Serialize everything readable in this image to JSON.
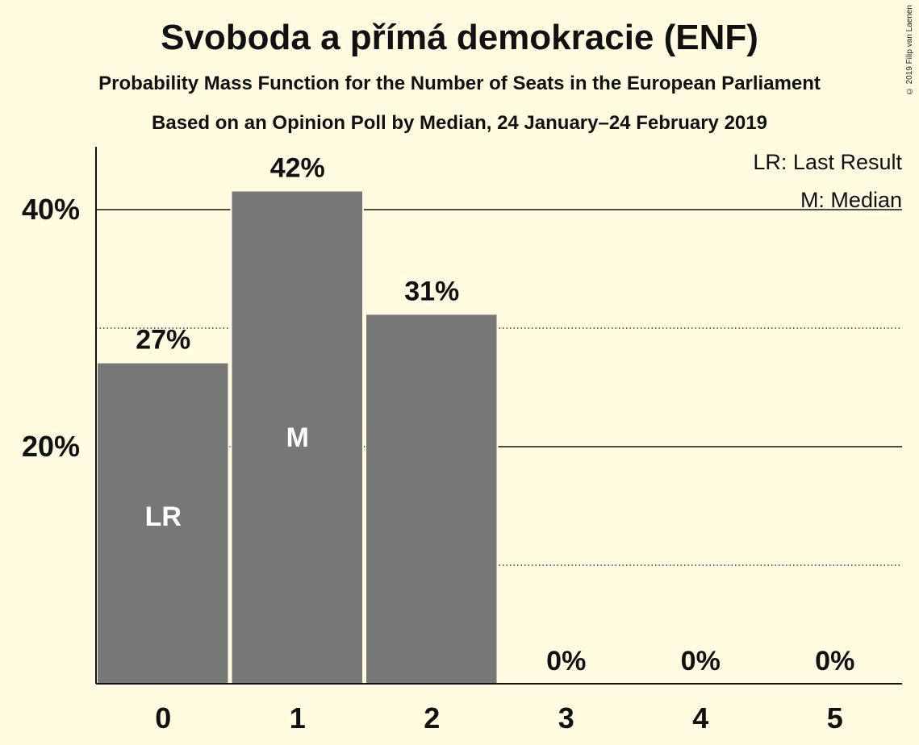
{
  "chart": {
    "title": "Svoboda a přímá demokracie (ENF)",
    "subtitle1": "Probability Mass Function for the Number of Seats in the European Parliament",
    "subtitle2": "Based on an Opinion Poll by Median, 24 January–24 February 2019",
    "copyright": "© 2019 Filip van Laenen",
    "legend": {
      "last_result": "LR: Last Result",
      "median": "M: Median"
    }
  },
  "chart_data": {
    "type": "bar",
    "categories": [
      "0",
      "1",
      "2",
      "3",
      "4",
      "5"
    ],
    "values": [
      27.1,
      41.6,
      31.2,
      0,
      0,
      0
    ],
    "value_labels": [
      "27%",
      "42%",
      "31%",
      "0%",
      "0%",
      "0%"
    ],
    "bar_markers": [
      "LR",
      "M",
      "",
      "",
      "",
      ""
    ],
    "ylim": [
      0,
      45
    ],
    "yticks": [
      20,
      40
    ],
    "ytick_labels": [
      "20%",
      "40%"
    ],
    "minor_gridlines": [
      10,
      30
    ],
    "grid": true,
    "legend_position": "top-right",
    "colors": {
      "background": "#FFFCE2",
      "bar": "#777777",
      "text": "#111111",
      "marker_text": "#FFFFFF"
    }
  }
}
